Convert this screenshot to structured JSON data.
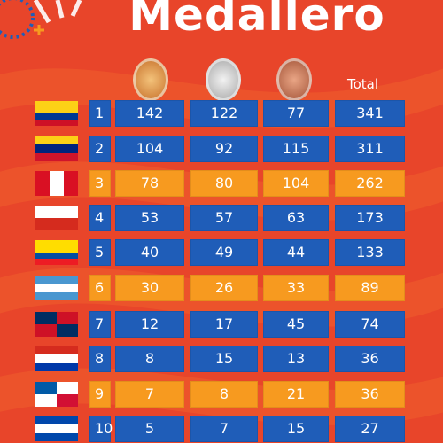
{
  "title": "Medallero",
  "total_header": "Total",
  "table": {
    "rows": [
      [
        1,
        142,
        122,
        77,
        341
      ],
      [
        2,
        104,
        92,
        115,
        311
      ],
      [
        3,
        78,
        80,
        104,
        262
      ],
      [
        4,
        53,
        57,
        63,
        173
      ],
      [
        5,
        40,
        49,
        44,
        133
      ],
      [
        6,
        30,
        26,
        33,
        89
      ],
      [
        7,
        12,
        17,
        45,
        74
      ],
      [
        8,
        8,
        15,
        13,
        36
      ],
      [
        9,
        7,
        8,
        21,
        36
      ],
      [
        10,
        5,
        7,
        15,
        27
      ]
    ]
  }
}
